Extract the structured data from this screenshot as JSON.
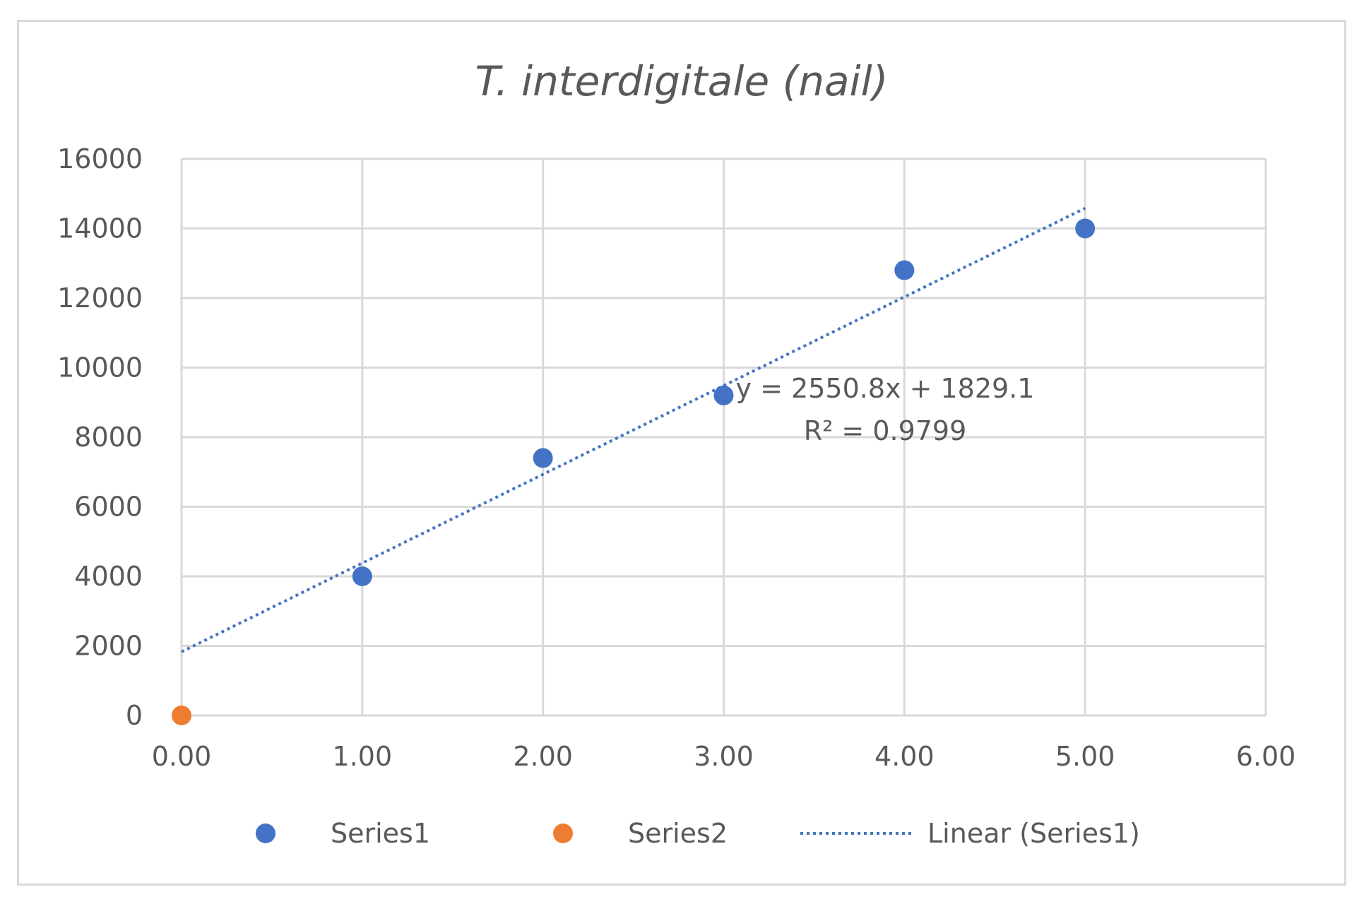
{
  "chart_data": {
    "type": "scatter",
    "title": "T. interdigitale (nail)",
    "xlabel": "",
    "ylabel": "",
    "xlim": [
      0,
      6
    ],
    "ylim": [
      0,
      16000
    ],
    "x_ticks": [
      "0.00",
      "1.00",
      "2.00",
      "3.00",
      "4.00",
      "5.00",
      "6.00"
    ],
    "y_ticks": [
      "0",
      "2000",
      "4000",
      "6000",
      "8000",
      "10000",
      "12000",
      "14000",
      "16000"
    ],
    "grid": true,
    "legend_position": "bottom",
    "series": [
      {
        "name": "Series1",
        "color": "#4472c4",
        "points": [
          {
            "x": 1,
            "y": 4000
          },
          {
            "x": 2,
            "y": 7400
          },
          {
            "x": 3,
            "y": 9200
          },
          {
            "x": 4,
            "y": 12800
          },
          {
            "x": 5,
            "y": 14000
          }
        ]
      },
      {
        "name": "Series2",
        "color": "#ed7d31",
        "points": [
          {
            "x": 0,
            "y": 0
          }
        ]
      }
    ],
    "trendline": {
      "name": "Linear (Series1)",
      "series": "Series1",
      "type": "linear",
      "slope": 2550.8,
      "intercept": 1829.1,
      "x_range": [
        0,
        5
      ],
      "color": "#4472c4",
      "equation_label": "y = 2550.8x + 1829.1",
      "r2_label": "R² = 0.9799"
    }
  }
}
